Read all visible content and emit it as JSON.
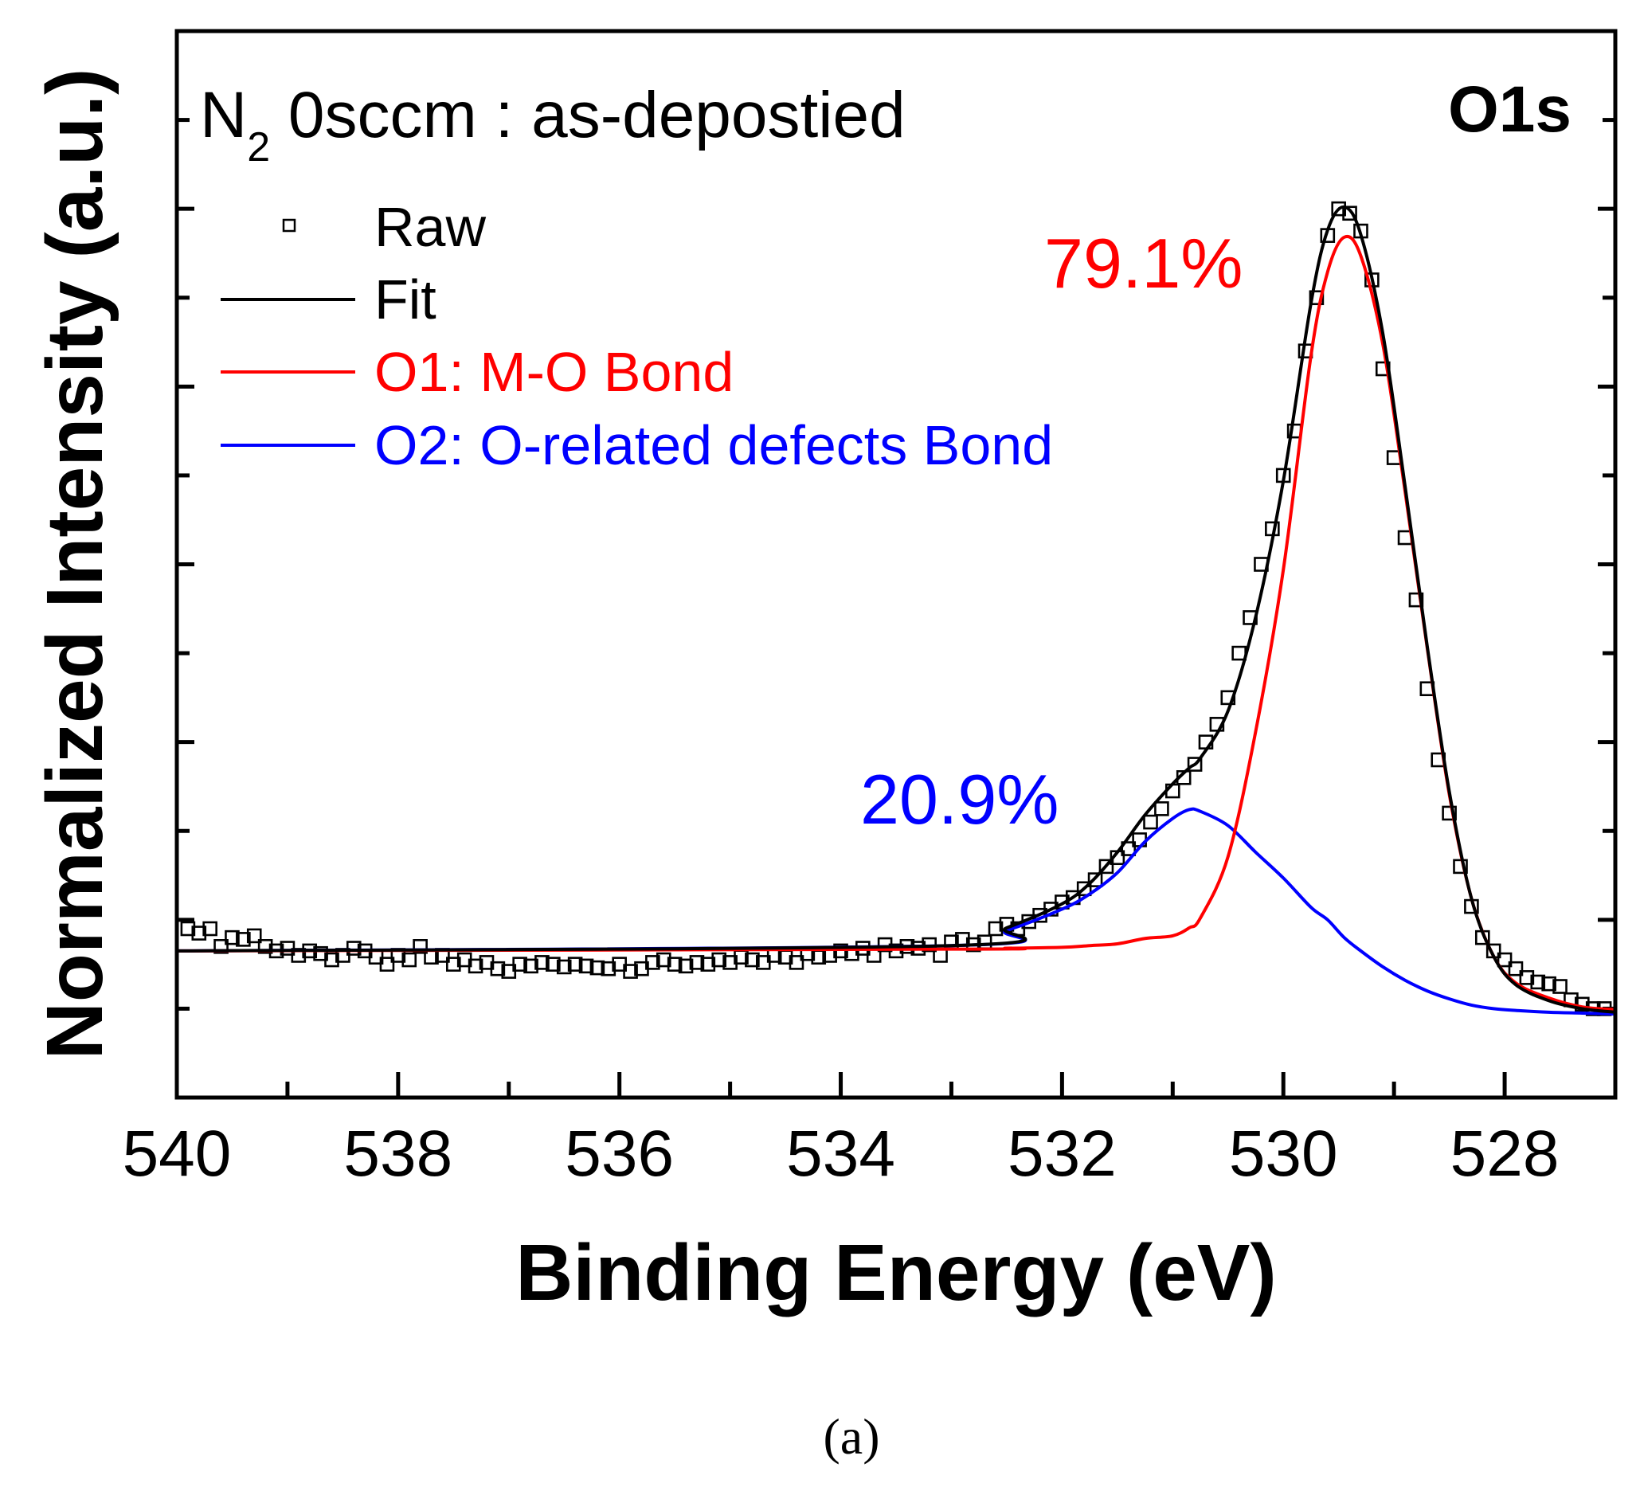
{
  "chart_data": {
    "type": "line",
    "title": "O1s",
    "annotation": {
      "prefix": "N",
      "subscript": "2",
      "suffix": " 0sccm : as-depostied"
    },
    "xlabel": "Binding Energy (eV)",
    "ylabel": "Normalized Intensity (a.u.)",
    "xlim": [
      540,
      527
    ],
    "ylim": [
      0,
      1.2
    ],
    "x_ticks": [
      540,
      538,
      536,
      534,
      532,
      530,
      528
    ],
    "x_tick_labels": [
      "540",
      "538",
      "536",
      "534",
      "532",
      "530",
      "528"
    ],
    "y_tick_labels_shown": false,
    "grid": false,
    "legend_position": "top-left",
    "legend": [
      "Raw",
      "Fit",
      "O1: M-O Bond",
      "O2: O-related defects Bond"
    ],
    "peak_labels": [
      {
        "text": "79.1%",
        "series": "O1: M-O Bond",
        "color": "#ff0000"
      },
      {
        "text": "20.9%",
        "series": "O2: O-related defects Bond",
        "color": "#0000ff"
      }
    ],
    "panel_label": "(a)",
    "series": [
      {
        "name": "Raw",
        "kind": "scatter",
        "marker": "open-square",
        "color": "#000000",
        "x": [
          539.9,
          539.8,
          539.7,
          539.6,
          539.5,
          539.4,
          539.3,
          539.2,
          539.1,
          539.0,
          538.9,
          538.8,
          538.7,
          538.6,
          538.5,
          538.4,
          538.3,
          538.2,
          538.1,
          538.0,
          537.9,
          537.8,
          537.7,
          537.6,
          537.5,
          537.4,
          537.3,
          537.2,
          537.1,
          537.0,
          536.9,
          536.8,
          536.7,
          536.6,
          536.5,
          536.4,
          536.3,
          536.2,
          536.1,
          536.0,
          535.9,
          535.8,
          535.7,
          535.6,
          535.5,
          535.4,
          535.3,
          535.2,
          535.1,
          535.0,
          534.9,
          534.8,
          534.7,
          534.6,
          534.5,
          534.4,
          534.3,
          534.2,
          534.1,
          534.0,
          533.9,
          533.8,
          533.7,
          533.6,
          533.5,
          533.4,
          533.3,
          533.2,
          533.1,
          533.0,
          532.9,
          532.8,
          532.7,
          532.6,
          532.5,
          532.4,
          532.3,
          532.2,
          532.1,
          532.0,
          531.9,
          531.8,
          531.7,
          531.6,
          531.5,
          531.4,
          531.3,
          531.2,
          531.1,
          531.0,
          530.9,
          530.8,
          530.7,
          530.6,
          530.5,
          530.4,
          530.3,
          530.2,
          530.1,
          530.0,
          529.9,
          529.8,
          529.7,
          529.6,
          529.5,
          529.4,
          529.3,
          529.2,
          529.1,
          529.0,
          528.9,
          528.8,
          528.7,
          528.6,
          528.5,
          528.4,
          528.3,
          528.2,
          528.1,
          528.0,
          527.9,
          527.8,
          527.7,
          527.6,
          527.5,
          527.4,
          527.3,
          527.2,
          527.1
        ],
        "y": [
          0.19,
          0.185,
          0.19,
          0.17,
          0.18,
          0.178,
          0.182,
          0.17,
          0.165,
          0.168,
          0.16,
          0.165,
          0.162,
          0.155,
          0.16,
          0.168,
          0.165,
          0.158,
          0.15,
          0.16,
          0.155,
          0.17,
          0.158,
          0.16,
          0.15,
          0.155,
          0.148,
          0.152,
          0.145,
          0.142,
          0.15,
          0.148,
          0.152,
          0.15,
          0.147,
          0.15,
          0.148,
          0.146,
          0.145,
          0.15,
          0.142,
          0.145,
          0.152,
          0.155,
          0.15,
          0.148,
          0.152,
          0.15,
          0.155,
          0.152,
          0.158,
          0.155,
          0.152,
          0.16,
          0.158,
          0.152,
          0.162,
          0.158,
          0.16,
          0.165,
          0.162,
          0.168,
          0.16,
          0.172,
          0.165,
          0.17,
          0.168,
          0.172,
          0.16,
          0.175,
          0.178,
          0.172,
          0.175,
          0.19,
          0.195,
          0.19,
          0.198,
          0.205,
          0.212,
          0.22,
          0.225,
          0.235,
          0.245,
          0.26,
          0.27,
          0.28,
          0.29,
          0.31,
          0.325,
          0.345,
          0.36,
          0.375,
          0.4,
          0.42,
          0.45,
          0.5,
          0.54,
          0.6,
          0.64,
          0.7,
          0.75,
          0.84,
          0.9,
          0.97,
          1.0,
          0.995,
          0.975,
          0.92,
          0.82,
          0.72,
          0.63,
          0.56,
          0.46,
          0.38,
          0.32,
          0.26,
          0.215,
          0.18,
          0.165,
          0.155,
          0.145,
          0.135,
          0.13,
          0.128,
          0.125,
          0.11,
          0.105,
          0.1,
          0.1
        ]
      },
      {
        "name": "Fit",
        "kind": "line",
        "color": "#000000",
        "x": [
          540,
          533,
          532.5,
          532,
          531.75,
          531.5,
          531.25,
          531.0,
          530.85,
          530.75,
          530.5,
          530.25,
          530.0,
          529.75,
          529.6,
          529.45,
          529.3,
          529.1,
          528.9,
          528.7,
          528.5,
          528.3,
          528.1,
          527.9,
          527.6,
          527.3,
          527.0
        ],
        "y": [
          0.165,
          0.171,
          0.191,
          0.218,
          0.241,
          0.276,
          0.318,
          0.353,
          0.371,
          0.382,
          0.435,
          0.541,
          0.694,
          0.894,
          0.976,
          1.002,
          0.971,
          0.859,
          0.688,
          0.508,
          0.344,
          0.224,
          0.159,
          0.127,
          0.109,
          0.1,
          0.096
        ]
      },
      {
        "name": "O1: M-O Bond",
        "kind": "line",
        "color": "#ff0000",
        "x": [
          540,
          533,
          532.5,
          532,
          531.75,
          531.5,
          531.25,
          531.0,
          530.85,
          530.75,
          530.5,
          530.25,
          530.0,
          529.75,
          529.6,
          529.45,
          529.3,
          529.1,
          528.9,
          528.7,
          528.5,
          528.3,
          528.1,
          527.9,
          527.6,
          527.3,
          527.0
        ],
        "y": [
          0.165,
          0.167,
          0.168,
          0.169,
          0.171,
          0.173,
          0.179,
          0.182,
          0.191,
          0.202,
          0.271,
          0.412,
          0.594,
          0.835,
          0.929,
          0.968,
          0.947,
          0.847,
          0.682,
          0.506,
          0.341,
          0.224,
          0.159,
          0.129,
          0.112,
          0.102,
          0.099
        ]
      },
      {
        "name": "O2: O-related defects Bond",
        "kind": "line",
        "color": "#0000ff",
        "x": [
          540,
          533,
          532.5,
          532,
          531.75,
          531.5,
          531.25,
          531.0,
          530.85,
          530.75,
          530.5,
          530.25,
          530.0,
          529.75,
          529.6,
          529.45,
          529.3,
          529.1,
          528.9,
          528.7,
          528.5,
          528.3,
          528.1,
          527.9,
          527.6,
          527.3,
          527.0
        ],
        "y": [
          0.165,
          0.171,
          0.188,
          0.212,
          0.229,
          0.253,
          0.288,
          0.314,
          0.324,
          0.322,
          0.306,
          0.276,
          0.247,
          0.214,
          0.2,
          0.18,
          0.165,
          0.147,
          0.132,
          0.12,
          0.111,
          0.104,
          0.1,
          0.098,
          0.096,
          0.095,
          0.094
        ]
      }
    ]
  }
}
